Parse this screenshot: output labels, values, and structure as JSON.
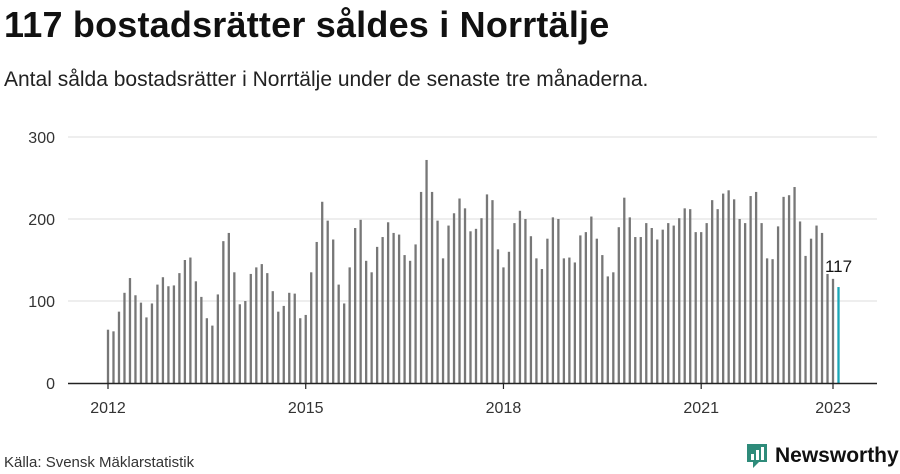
{
  "header": {
    "title": "117 bostadsrätter såldes i Norrtälje",
    "subtitle": "Antal sålda bostadsrätter i Norrtälje under de senaste tre månaderna."
  },
  "footer": {
    "source": "Källa: Svensk Mäklarstatistik",
    "brand": "Newsworthy"
  },
  "colors": {
    "bar": "#777777",
    "highlight": "#1aa6b7",
    "brand": "#2e8b7a",
    "grid": "#dddddd"
  },
  "icons": {
    "brand_logo": "newsworthy-logo-icon"
  },
  "chart_data": {
    "type": "bar",
    "x_start": "2012-01",
    "x_end": "2023-01",
    "xticks": [
      "2012",
      "2015",
      "2018",
      "2021",
      "2023"
    ],
    "yticks": [
      "0",
      "100",
      "200",
      "300"
    ],
    "ylim": [
      0,
      300
    ],
    "grid": true,
    "highlight": {
      "label": "117",
      "value": 117
    },
    "values": [
      65,
      63,
      87,
      110,
      128,
      107,
      98,
      80,
      97,
      120,
      129,
      118,
      119,
      134,
      150,
      153,
      124,
      105,
      79,
      70,
      108,
      173,
      183,
      135,
      96,
      100,
      133,
      141,
      145,
      134,
      112,
      87,
      94,
      110,
      109,
      79,
      83,
      135,
      172,
      221,
      198,
      175,
      120,
      97,
      141,
      189,
      199,
      149,
      135,
      166,
      178,
      196,
      183,
      181,
      156,
      149,
      169,
      233,
      272,
      233,
      198,
      152,
      192,
      207,
      225,
      213,
      185,
      188,
      201,
      230,
      223,
      163,
      141,
      160,
      195,
      210,
      200,
      179,
      152,
      139,
      176,
      202,
      200,
      152,
      153,
      147,
      180,
      184,
      203,
      176,
      156,
      130,
      135,
      190,
      226,
      202,
      178,
      178,
      195,
      189,
      175,
      187,
      195,
      192,
      201,
      213,
      212,
      184,
      184,
      195,
      223,
      212,
      231,
      235,
      224,
      200,
      195,
      228,
      233,
      195,
      152,
      151,
      191,
      227,
      229,
      239,
      197,
      155,
      176,
      192,
      183,
      133,
      127,
      117
    ]
  }
}
